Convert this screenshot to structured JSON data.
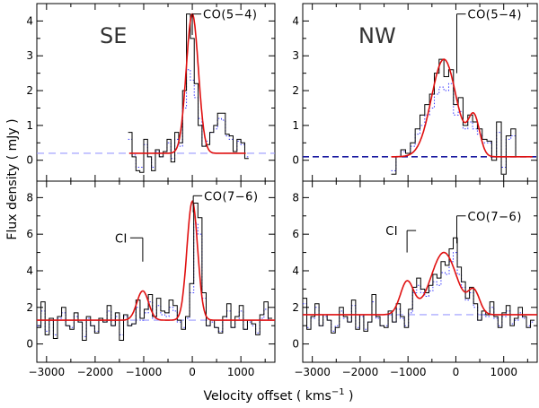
{
  "chart_data": {
    "type": "line",
    "figure": {
      "ylabel": "Flux density  ( mJy )",
      "xlabel_main": "Velocity offset  ( kms",
      "xlabel_exp": "−1",
      "xlabel_end": " )"
    },
    "colors": {
      "hist": "#000000",
      "fit": "#e01010",
      "dotted": "#3a3aff",
      "baseline_dark": "#1a1aa0",
      "baseline_light": "#9a9aff"
    },
    "panels": [
      {
        "id": "se-co54",
        "region_label": "SE",
        "line_label": "CO(5−4)",
        "xlim": [
          -3200,
          1700
        ],
        "ylim": [
          -0.6,
          4.5
        ],
        "yticks": [
          0,
          1,
          2,
          3,
          4
        ],
        "xticks": [
          -3000,
          -2000,
          -1000,
          0,
          1000
        ],
        "show_xtick_labels": false,
        "baseline": 0.2,
        "baseline_style": "light",
        "hist_start": -1320,
        "hist_step": 80,
        "hist": [
          0.8,
          0.1,
          -0.3,
          -0.35,
          0.6,
          0.1,
          -0.3,
          0.3,
          0.1,
          0.25,
          0.6,
          -0.05,
          0.8,
          0.5,
          2.0,
          4.2,
          3.5,
          2.2,
          1.0,
          0.4,
          0.45,
          0.8,
          1.0,
          1.35,
          1.35,
          0.75,
          0.7,
          0.25,
          0.6,
          0.5,
          0.05
        ],
        "dotted": [
          0.6,
          0.15,
          -0.2,
          -0.2,
          0.45,
          0.1,
          -0.2,
          0.25,
          0.1,
          0.2,
          0.5,
          0.05,
          0.6,
          0.4,
          1.5,
          2.6,
          2.3,
          1.8,
          1.2,
          0.4,
          0.55,
          0.8,
          0.9,
          1.2,
          1.15,
          0.7,
          0.6,
          0.25,
          0.55,
          0.45,
          0.1
        ],
        "fit_range": [
          -1300,
          1100
        ],
        "components": [
          {
            "center": 0,
            "amplitude": 4.0,
            "sigma": 125
          }
        ],
        "marker": {
          "x": 0,
          "y_from": 3.6,
          "y_to": 4.2,
          "label": "CO(5−4)"
        }
      },
      {
        "id": "nw-co54",
        "region_label": "NW",
        "line_label": "CO(5−4)",
        "xlim": [
          -3200,
          1700
        ],
        "ylim": [
          -0.6,
          4.5
        ],
        "yticks": [
          0,
          1,
          2,
          3,
          4
        ],
        "xticks": [
          -3000,
          -2000,
          -1000,
          0,
          1000
        ],
        "show_xtick_labels": false,
        "baseline": 0.1,
        "baseline_style": "dark",
        "hist_start": -1350,
        "hist_step": 100,
        "hist": [
          -0.4,
          0.1,
          0.3,
          0.2,
          0.5,
          0.9,
          1.3,
          1.6,
          1.9,
          2.5,
          2.9,
          2.4,
          2.6,
          1.6,
          1.8,
          1.0,
          1.3,
          1.1,
          0.9,
          0.6,
          0.55,
          0.0,
          1.1,
          -0.4,
          0.7,
          0.9,
          0.1
        ],
        "dotted": [
          -0.3,
          0.1,
          0.25,
          0.2,
          0.4,
          0.75,
          1.0,
          1.3,
          1.5,
          1.9,
          2.1,
          2.0,
          2.2,
          1.3,
          1.4,
          0.9,
          1.1,
          0.9,
          0.75,
          0.5,
          0.5,
          0.1,
          0.8,
          -0.2,
          0.6,
          0.7,
          0.1
        ],
        "fit_range": [
          -1350,
          1600
        ],
        "components": [
          {
            "center": -250,
            "amplitude": 2.8,
            "sigma": 260
          },
          {
            "center": 380,
            "amplitude": 1.1,
            "sigma": 120
          }
        ],
        "marker": {
          "x": 20,
          "y_from": 2.5,
          "y_to": 4.2,
          "label": "CO(5−4)"
        }
      },
      {
        "id": "se-co76",
        "region_label": "",
        "line_label": "CO(7−6)",
        "xlim": [
          -3200,
          1700
        ],
        "ylim": [
          -1.0,
          8.9
        ],
        "yticks": [
          0,
          2,
          4,
          6,
          8
        ],
        "xticks": [
          -3000,
          -2000,
          -1000,
          0,
          1000
        ],
        "xtick_labels": [
          "−3000",
          "−2000",
          "−1000",
          "0",
          "1000"
        ],
        "show_xtick_labels": true,
        "baseline": 1.3,
        "baseline_style": "light",
        "hist_start": -3200,
        "hist_step": 85,
        "hist": [
          0.9,
          2.3,
          0.5,
          1.4,
          0.3,
          1.5,
          2.0,
          1.0,
          0.8,
          1.7,
          1.2,
          0.2,
          1.5,
          1.0,
          0.6,
          1.4,
          1.2,
          2.1,
          1.0,
          1.7,
          0.2,
          1.6,
          1.0,
          1.1,
          2.4,
          1.4,
          1.9,
          2.7,
          1.5,
          2.5,
          1.8,
          1.7,
          2.4,
          2.1,
          1.3,
          0.8,
          1.5,
          3.3,
          7.7,
          6.9,
          2.8,
          1.0,
          1.3,
          0.9,
          0.6,
          1.5,
          2.2,
          0.9,
          1.5,
          2.1,
          0.8,
          1.3,
          1.1,
          0.5,
          1.6,
          2.3,
          1.4
        ],
        "dotted": [
          1.0,
          1.8,
          0.7,
          1.3,
          0.5,
          1.4,
          1.7,
          1.0,
          0.9,
          1.5,
          1.2,
          0.4,
          1.4,
          1.0,
          0.7,
          1.3,
          1.2,
          1.8,
          1.0,
          1.5,
          0.5,
          1.5,
          1.0,
          1.1,
          2.0,
          1.3,
          1.7,
          2.3,
          1.4,
          2.1,
          1.6,
          1.5,
          2.0,
          1.8,
          1.2,
          0.9,
          1.4,
          2.8,
          6.6,
          6.0,
          2.5,
          1.0,
          1.2,
          0.9,
          0.7,
          1.3,
          1.8,
          0.9,
          1.3,
          1.8,
          0.8,
          1.2,
          1.0,
          0.6,
          1.4,
          1.9,
          1.3
        ],
        "fit_range": [
          -3200,
          1700
        ],
        "components": [
          {
            "center": -1020,
            "amplitude": 1.6,
            "sigma": 120
          },
          {
            "center": 0,
            "amplitude": 6.5,
            "sigma": 110
          }
        ],
        "marker": {
          "x": -1020,
          "y_from": 4.5,
          "y_to": 5.8,
          "label": "CI"
        },
        "marker2": {
          "x": 20,
          "y_from": 7.2,
          "y_to": 8.1,
          "label": "CO(7−6)"
        }
      },
      {
        "id": "nw-co76",
        "region_label": "",
        "line_label": "CO(7−6)",
        "xlim": [
          -3200,
          1700
        ],
        "ylim": [
          -1.0,
          8.9
        ],
        "yticks": [
          0,
          2,
          4,
          6,
          8
        ],
        "xticks": [
          -3000,
          -2000,
          -1000,
          0,
          1000
        ],
        "xtick_labels": [
          "−3000",
          "−2000",
          "−1000",
          "0",
          "1000"
        ],
        "show_xtick_labels": true,
        "baseline": 1.6,
        "baseline_style": "light",
        "hist_start": -3200,
        "hist_step": 85,
        "hist": [
          2.5,
          0.8,
          1.5,
          2.2,
          1.0,
          1.6,
          1.3,
          0.6,
          0.9,
          2.0,
          1.5,
          1.2,
          2.4,
          0.8,
          1.6,
          0.7,
          1.2,
          2.7,
          1.5,
          1.0,
          0.9,
          1.8,
          1.2,
          2.2,
          1.5,
          0.9,
          1.9,
          3.1,
          3.6,
          3.0,
          2.8,
          3.2,
          3.8,
          3.6,
          4.5,
          4.3,
          5.2,
          5.8,
          4.2,
          3.4,
          2.5,
          3.1,
          2.2,
          1.3,
          1.8,
          1.6,
          2.3,
          1.5,
          0.9,
          1.7,
          2.1,
          1.0,
          1.4,
          2.0,
          1.5,
          0.9,
          1.3
        ],
        "dotted": [
          2.2,
          0.9,
          1.4,
          2.0,
          1.0,
          1.5,
          1.3,
          0.7,
          1.0,
          1.8,
          1.4,
          1.2,
          2.1,
          0.9,
          1.5,
          0.8,
          1.2,
          2.3,
          1.4,
          1.0,
          1.0,
          1.6,
          1.2,
          1.9,
          1.4,
          1.0,
          1.7,
          2.8,
          3.2,
          2.8,
          2.6,
          2.9,
          3.4,
          3.2,
          3.9,
          3.8,
          4.5,
          5.0,
          3.8,
          3.1,
          2.4,
          2.8,
          2.0,
          1.3,
          1.6,
          1.5,
          2.0,
          1.4,
          1.0,
          1.5,
          1.8,
          1.1,
          1.3,
          1.7,
          1.4,
          1.0,
          1.2
        ],
        "fit_range": [
          -3200,
          1700
        ],
        "components": [
          {
            "center": -1020,
            "amplitude": 1.8,
            "sigma": 140
          },
          {
            "center": -250,
            "amplitude": 3.4,
            "sigma": 270
          },
          {
            "center": 380,
            "amplitude": 1.2,
            "sigma": 120
          }
        ],
        "marker": {
          "x": -1020,
          "y_from": 5.0,
          "y_to": 6.2,
          "label": "CI"
        },
        "marker2": {
          "x": 20,
          "y_from": 5.5,
          "y_to": 7.0,
          "label": "CO(7−6)"
        }
      }
    ]
  }
}
